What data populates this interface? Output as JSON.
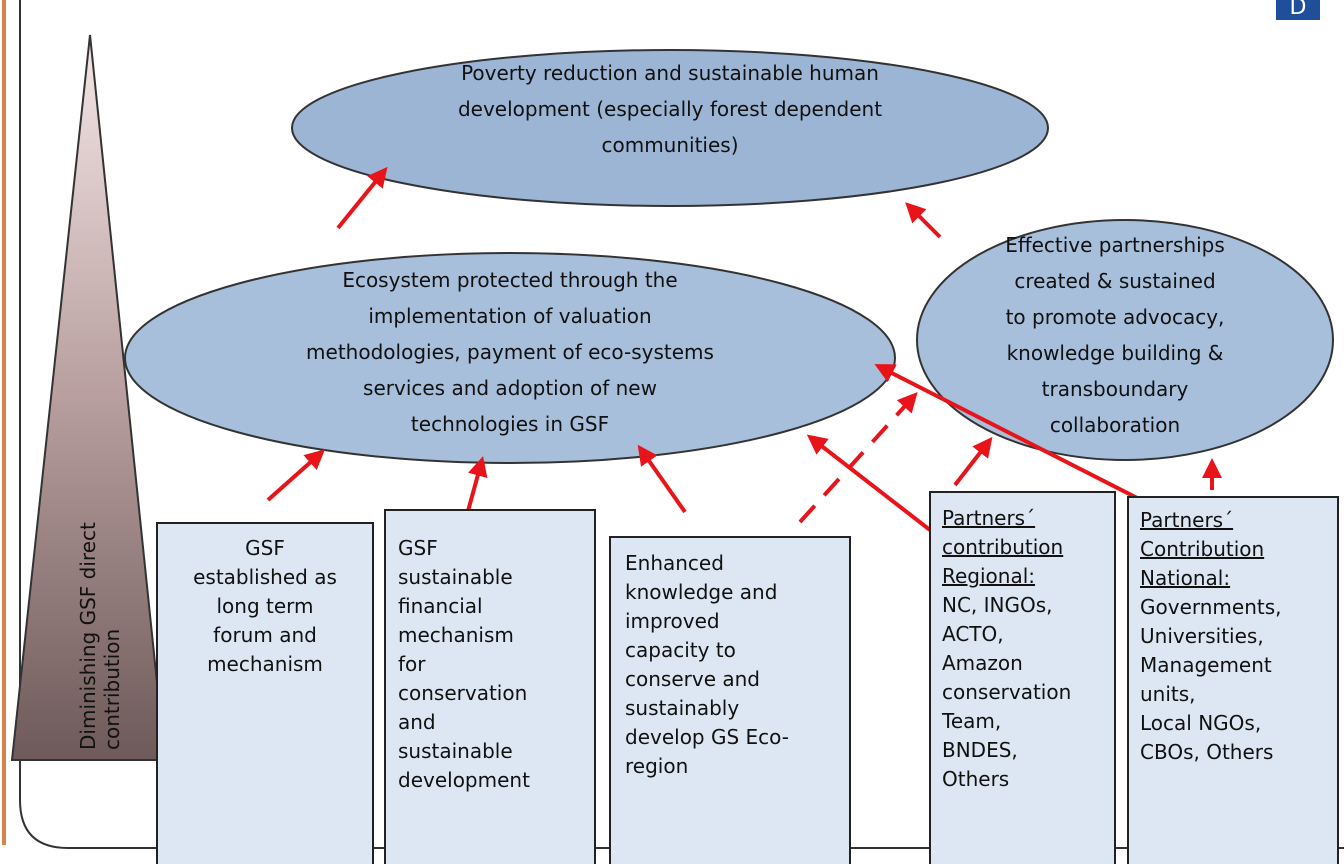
{
  "logo": "D",
  "pyramid": {
    "lines": [
      "Diminishing GSF direct",
      "contribution"
    ]
  },
  "goal": {
    "lines": [
      "Poverty reduction and sustainable human",
      "development  (especially forest dependent",
      "communities)"
    ]
  },
  "outcomes": [
    {
      "lines": [
        "Ecosystem protected through the",
        "implementation of valuation",
        "methodologies, payment of eco-systems",
        "services and adoption of new",
        "technologies in GSF"
      ]
    },
    {
      "lines": [
        "Effective partnerships",
        "created & sustained",
        "to promote advocacy,",
        "knowledge building &",
        "transboundary",
        "collaboration"
      ]
    }
  ],
  "boxes": [
    {
      "headings": [],
      "lines": [
        "GSF",
        "established as",
        "long term",
        "forum and",
        "mechanism"
      ]
    },
    {
      "headings": [],
      "lines": [
        "GSF",
        "sustainable",
        "financial",
        "mechanism",
        "for",
        "conservation",
        "and",
        "sustainable",
        "development"
      ]
    },
    {
      "headings": [],
      "lines": [
        "Enhanced",
        "knowledge and",
        "improved",
        "capacity to",
        "conserve and",
        "sustainably",
        "develop GS Eco-",
        "region"
      ]
    },
    {
      "headings": [
        "Partners´",
        "contribution",
        "Regional:"
      ],
      "lines": [
        "NC,  INGOs,",
        "ACTO,",
        "Amazon",
        "conservation",
        "Team,",
        "BNDES,",
        "Others"
      ]
    },
    {
      "headings": [
        "Partners´",
        "Contribution",
        "National:"
      ],
      "lines": [
        "Governments,",
        "Universities,",
        " Management",
        "units,",
        "Local NGOs,",
        "CBOs, Others"
      ]
    }
  ]
}
